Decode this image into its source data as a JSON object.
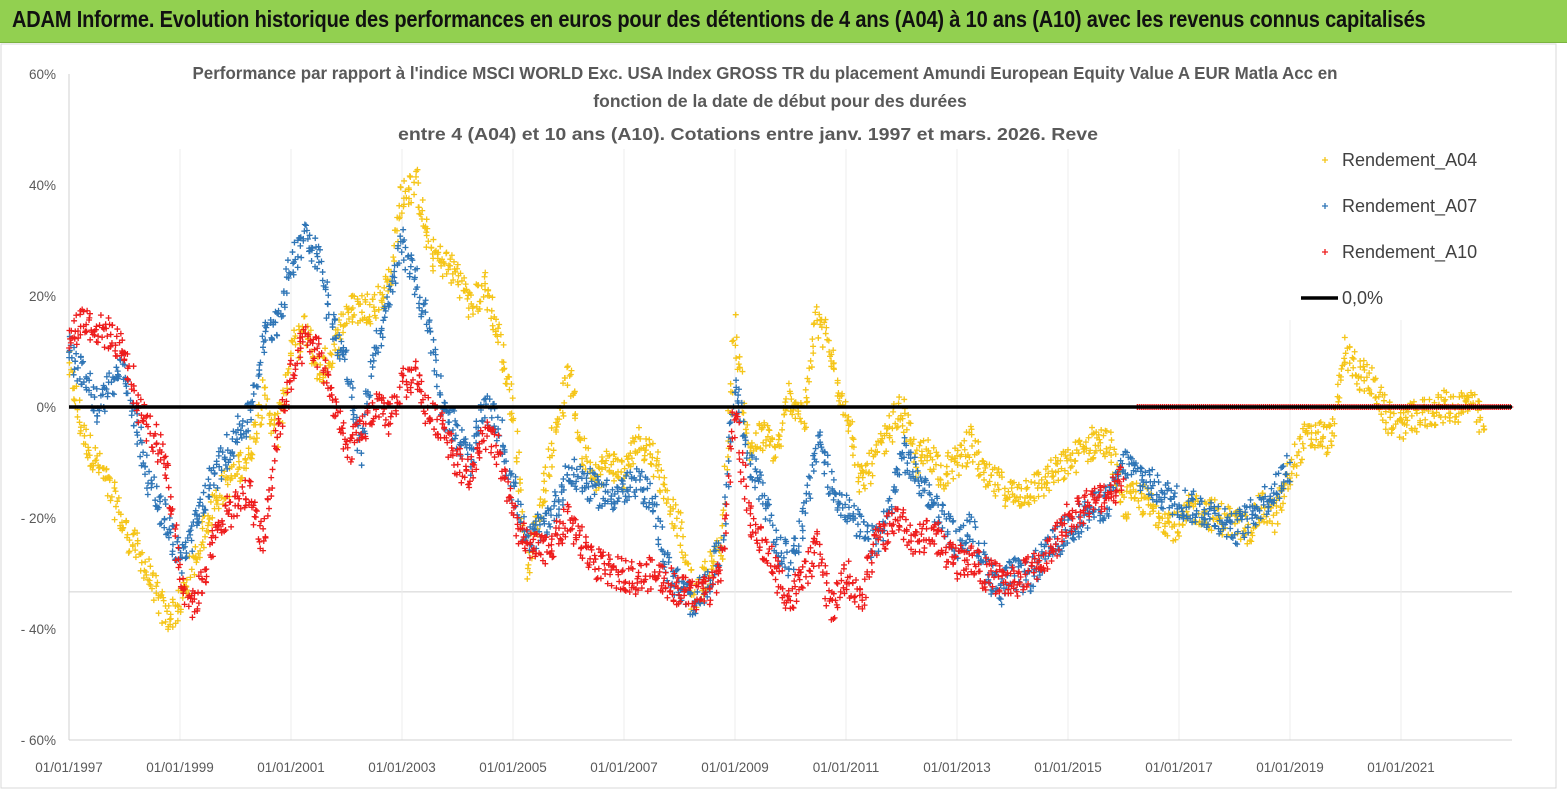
{
  "banner": {
    "title": "ADAM Informe. Evolution historique des performances en euros pour des détentions de 4 ans (A04) à 10 ans (A10) avec les revenus connus capitalisés"
  },
  "colors": {
    "banner_bg": "#92d050",
    "a04": "#f5c518",
    "a07": "#2e75b6",
    "a10": "#ee1c1c",
    "zero": "#000000"
  },
  "chart_data": {
    "type": "scatter",
    "title": [
      "Performance par rapport à l'indice MSCI WORLD Exc. USA Index GROSS TR  du placement Amundi European Equity Value A EUR Matla Acc en",
      "fonction de la date de début pour des durées",
      "entre 4 (A04) et 10 ans (A10). Cotations entre janv. 1997 et mars. 2026. Reve"
    ],
    "xlabel": "",
    "ylabel": "",
    "x_range": [
      1997.0,
      2023.0
    ],
    "ylim": [
      -60,
      60
    ],
    "x_ticks": [
      "01/01/1997",
      "01/01/1999",
      "01/01/2001",
      "01/01/2003",
      "01/01/2005",
      "01/01/2007",
      "01/01/2009",
      "01/01/2011",
      "01/01/2013",
      "01/01/2015",
      "01/01/2017",
      "01/01/2019",
      "01/01/2021"
    ],
    "y_ticks": [
      "60%",
      "40%",
      "20%",
      "0%",
      "- 20%",
      "- 40%",
      "- 60%"
    ],
    "y_tick_values": [
      60,
      40,
      20,
      0,
      -20,
      -40,
      -60
    ],
    "legend": [
      "Rendement_A04",
      "Rendement_A07",
      "Rendement_A10",
      "0,0%"
    ],
    "series": [
      {
        "name": "Rendement_A04",
        "marker": "+",
        "x": [
          1997.0,
          1997.25,
          1997.5,
          1997.75,
          1998.0,
          1998.25,
          1998.5,
          1998.75,
          1999.0,
          1999.25,
          1999.5,
          1999.75,
          2000.0,
          2000.25,
          2000.5,
          2000.75,
          2001.0,
          2001.25,
          2001.5,
          2001.75,
          2002.0,
          2002.25,
          2002.5,
          2002.75,
          2003.0,
          2003.25,
          2003.5,
          2003.75,
          2004.0,
          2004.25,
          2004.5,
          2004.75,
          2005.0,
          2005.25,
          2005.5,
          2005.75,
          2006.0,
          2006.25,
          2006.5,
          2006.75,
          2007.0,
          2007.25,
          2007.5,
          2007.75,
          2008.0,
          2008.25,
          2008.5,
          2008.75,
          2009.0,
          2009.25,
          2009.5,
          2009.75,
          2010.0,
          2010.25,
          2010.5,
          2010.75,
          2011.0,
          2011.25,
          2011.5,
          2011.75,
          2012.0,
          2012.25,
          2012.5,
          2012.75,
          2013.0,
          2013.25,
          2013.5,
          2013.75,
          2014.0,
          2014.25,
          2014.5,
          2014.75,
          2015.0,
          2015.25,
          2015.5,
          2015.75,
          2016.0,
          2016.25,
          2016.5,
          2016.75,
          2017.0,
          2017.25,
          2017.5,
          2017.75,
          2018.0,
          2018.25,
          2018.5,
          2018.75,
          2019.0,
          2019.25,
          2019.5,
          2019.75,
          2020.0,
          2020.25,
          2020.5,
          2020.75,
          2021.0,
          2021.25,
          2021.5,
          2021.75,
          2022.0,
          2022.25,
          2022.5
        ],
        "y": [
          7,
          -5,
          -10,
          -15,
          -22,
          -26,
          -32,
          -38,
          -36,
          -28,
          -20,
          -15,
          -12,
          -8,
          2,
          -5,
          10,
          14,
          6,
          10,
          17,
          18,
          18,
          22,
          38,
          40,
          28,
          26,
          24,
          18,
          22,
          12,
          0,
          -28,
          -18,
          -5,
          6,
          -8,
          -12,
          -10,
          -12,
          -6,
          -8,
          -15,
          -22,
          -35,
          -30,
          -25,
          14,
          -8,
          -5,
          -8,
          2,
          -2,
          17,
          8,
          0,
          -14,
          -10,
          -5,
          0,
          -10,
          -8,
          -12,
          -10,
          -6,
          -13,
          -14,
          -16,
          -15,
          -14,
          -12,
          -10,
          -8,
          -6,
          -7,
          -18,
          -16,
          -18,
          -20,
          -22,
          -18,
          -19,
          -20,
          -21,
          -22,
          -18,
          -20,
          -12,
          -6,
          -5,
          -6,
          10,
          6,
          4,
          -2,
          -3,
          -2,
          -1,
          0,
          0,
          1,
          -4
        ]
      },
      {
        "name": "Rendement_A07",
        "marker": "+",
        "x": [
          1997.0,
          1997.25,
          1997.5,
          1997.75,
          1998.0,
          1998.25,
          1998.5,
          1998.75,
          1999.0,
          1999.25,
          1999.5,
          1999.75,
          2000.0,
          2000.25,
          2000.5,
          2000.75,
          2001.0,
          2001.25,
          2001.5,
          2001.75,
          2002.0,
          2002.25,
          2002.5,
          2002.75,
          2003.0,
          2003.25,
          2003.5,
          2003.75,
          2004.0,
          2004.25,
          2004.5,
          2004.75,
          2005.0,
          2005.25,
          2005.5,
          2005.75,
          2006.0,
          2006.25,
          2006.5,
          2006.75,
          2007.0,
          2007.25,
          2007.5,
          2007.75,
          2008.0,
          2008.25,
          2008.5,
          2008.75,
          2009.0,
          2009.25,
          2009.5,
          2009.75,
          2010.0,
          2010.25,
          2010.5,
          2010.75,
          2011.0,
          2011.25,
          2011.5,
          2011.75,
          2012.0,
          2012.25,
          2012.5,
          2012.75,
          2013.0,
          2013.25,
          2013.5,
          2013.75,
          2014.0,
          2014.25,
          2014.5,
          2014.75,
          2015.0,
          2015.25,
          2015.5,
          2015.75,
          2016.0,
          2016.25,
          2016.5,
          2016.75,
          2017.0,
          2017.25,
          2017.5,
          2017.75,
          2018.0,
          2018.25,
          2018.5,
          2018.75,
          2019.0
        ],
        "y": [
          10,
          6,
          0,
          4,
          7,
          -5,
          -15,
          -20,
          -28,
          -22,
          -15,
          -10,
          -5,
          -2,
          12,
          16,
          25,
          32,
          27,
          15,
          8,
          -8,
          10,
          18,
          30,
          22,
          14,
          0,
          -5,
          -10,
          0,
          -4,
          -14,
          -25,
          -22,
          -18,
          -12,
          -13,
          -15,
          -16,
          -15,
          -14,
          -16,
          -28,
          -33,
          -35,
          -32,
          -25,
          5,
          -10,
          -15,
          -25,
          -28,
          -20,
          -5,
          -15,
          -18,
          -22,
          -25,
          -20,
          -8,
          -12,
          -16,
          -20,
          -25,
          -22,
          -28,
          -33,
          -30,
          -31,
          -28,
          -25,
          -22,
          -20,
          -18,
          -17,
          -10,
          -12,
          -14,
          -16,
          -17,
          -18,
          -19,
          -20,
          -22,
          -20,
          -17,
          -15,
          -10
        ]
      },
      {
        "name": "Rendement_A10",
        "marker": "+",
        "x": [
          1997.0,
          1997.25,
          1997.5,
          1997.75,
          1998.0,
          1998.25,
          1998.5,
          1998.75,
          1999.0,
          1999.25,
          1999.5,
          1999.75,
          2000.0,
          2000.25,
          2000.5,
          2000.75,
          2001.0,
          2001.25,
          2001.5,
          2001.75,
          2002.0,
          2002.25,
          2002.5,
          2002.75,
          2003.0,
          2003.25,
          2003.5,
          2003.75,
          2004.0,
          2004.25,
          2004.5,
          2004.75,
          2005.0,
          2005.25,
          2005.5,
          2005.75,
          2006.0,
          2006.25,
          2006.5,
          2006.75,
          2007.0,
          2007.25,
          2007.5,
          2007.75,
          2008.0,
          2008.25,
          2008.5,
          2008.75,
          2009.0,
          2009.25,
          2009.5,
          2009.75,
          2010.0,
          2010.25,
          2010.5,
          2010.75,
          2011.0,
          2011.25,
          2011.5,
          2011.75,
          2012.0,
          2012.25,
          2012.5,
          2012.75,
          2013.0,
          2013.25,
          2013.5,
          2013.75,
          2014.0,
          2014.25,
          2014.5,
          2014.75,
          2015.0,
          2015.25,
          2015.5,
          2015.75,
          2016.0
        ],
        "y": [
          12,
          16,
          14,
          13,
          10,
          0,
          -5,
          -10,
          -30,
          -36,
          -28,
          -20,
          -18,
          -15,
          -25,
          -5,
          5,
          12,
          10,
          2,
          -8,
          -5,
          0,
          -2,
          4,
          6,
          -2,
          -3,
          -10,
          -12,
          -5,
          -8,
          -20,
          -25,
          -26,
          -24,
          -20,
          -25,
          -28,
          -30,
          -30,
          -31,
          -30,
          -31,
          -33,
          -34,
          -33,
          -30,
          0,
          -20,
          -25,
          -30,
          -35,
          -30,
          -25,
          -37,
          -30,
          -35,
          -25,
          -22,
          -20,
          -25,
          -22,
          -25,
          -28,
          -27,
          -30,
          -31,
          -32,
          -30,
          -28,
          -25,
          -20,
          -18,
          -17,
          -15,
          -13
        ]
      },
      {
        "name": "Rendement_A10 (0% segment)",
        "marker": "+",
        "x_from": 2016.25,
        "x_to": 2023.0,
        "y": 0
      },
      {
        "name": "0,0%",
        "marker": "line",
        "x": [
          1997.0,
          2023.0
        ],
        "y": [
          0,
          0
        ]
      }
    ]
  }
}
